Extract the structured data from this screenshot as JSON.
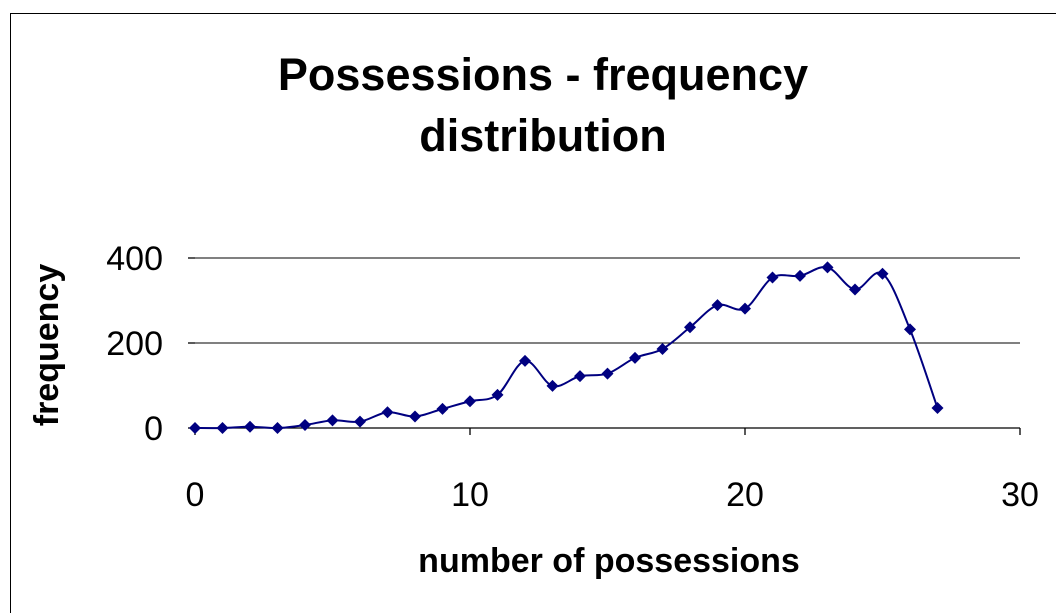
{
  "chart_data": {
    "type": "scatter",
    "title_lines": [
      "Possessions - frequency",
      "distribution"
    ],
    "xlabel": "number of possessions",
    "ylabel": "frequency",
    "xlim": [
      0,
      30
    ],
    "ylim": [
      0,
      400
    ],
    "x_ticks": [
      0,
      10,
      20,
      30
    ],
    "y_ticks": [
      0,
      200,
      400
    ],
    "grid": "horizontal major gridlines",
    "series_color": "#000080",
    "marker": "diamond",
    "line": "smoothed",
    "series": [
      {
        "x": [
          0,
          1,
          2,
          3,
          4,
          5,
          6,
          7,
          8,
          9,
          10,
          11,
          12,
          13,
          14,
          15,
          16,
          17,
          18,
          19,
          20,
          21,
          22,
          23,
          24,
          25,
          26,
          27
        ],
        "y": [
          0,
          0,
          3,
          0,
          7,
          18,
          15,
          37,
          27,
          45,
          63,
          78,
          158,
          99,
          122,
          128,
          165,
          186,
          237,
          289,
          281,
          354,
          358,
          378,
          326,
          363,
          232,
          47
        ]
      }
    ]
  }
}
